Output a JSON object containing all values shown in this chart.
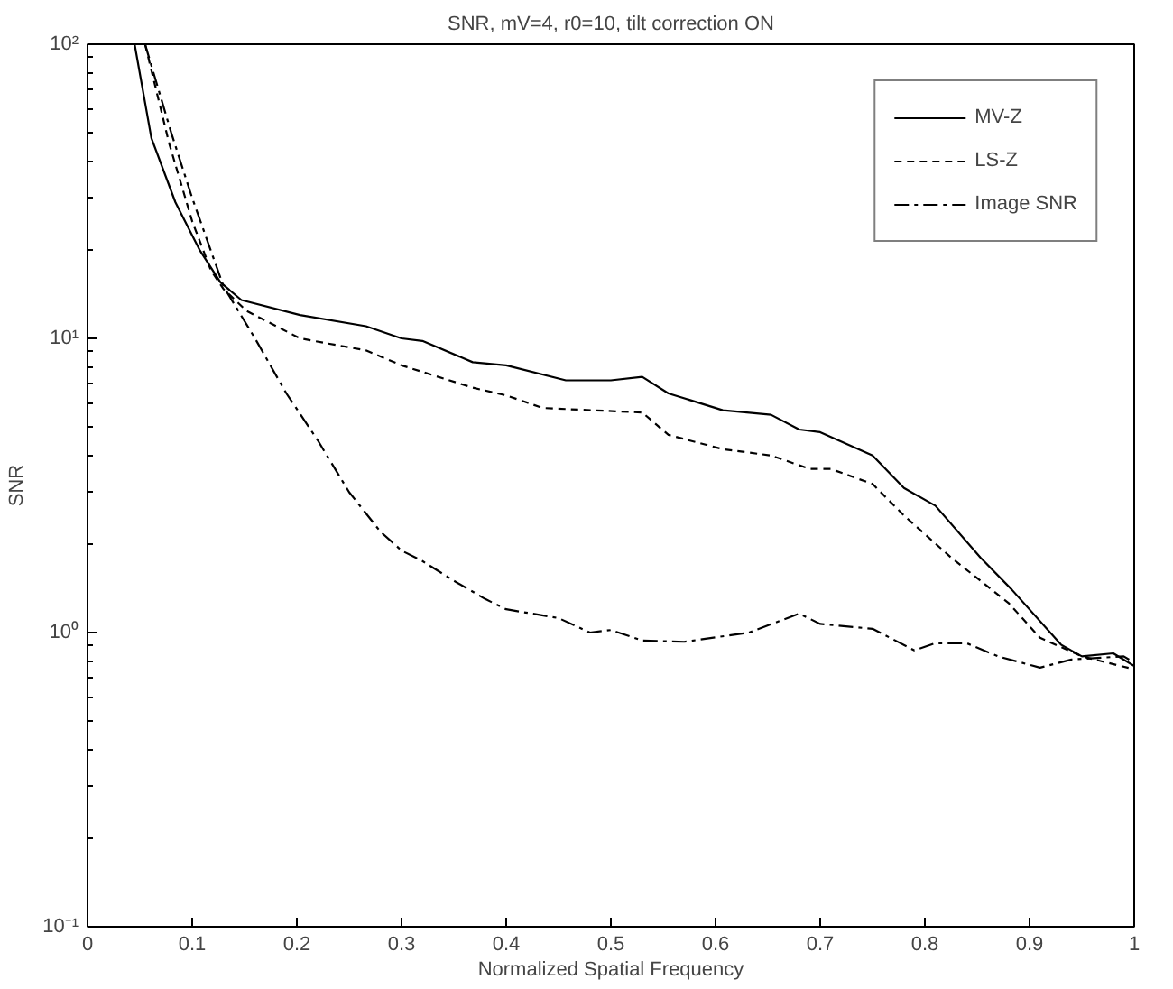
{
  "chart_data": {
    "type": "line",
    "title": "SNR, mV=4, r0=10, tilt correction ON",
    "xlabel": "Normalized Spatial Frequency",
    "ylabel": "SNR",
    "log": "y",
    "grid": false,
    "legend": "top right",
    "marker": "none",
    "xlim": [
      0,
      1
    ],
    "xticks": [
      0,
      0.1,
      0.2,
      0.3,
      0.4,
      0.5,
      0.6,
      0.7,
      0.8,
      0.9,
      1
    ],
    "ylim": [
      0.1,
      100
    ],
    "yticks": [
      {
        "value": 0.1,
        "label": "10⁻¹"
      },
      {
        "value": 1,
        "label": "10⁰"
      },
      {
        "value": 10,
        "label": "10¹"
      },
      {
        "value": 100,
        "label": "10²"
      }
    ],
    "series": [
      {
        "name": "MV-Z",
        "color": "#000000",
        "line_style": "solid",
        "x": [
          0.045,
          0.061,
          0.084,
          0.107,
          0.127,
          0.147,
          0.203,
          0.266,
          0.3,
          0.32,
          0.368,
          0.4,
          0.457,
          0.5,
          0.53,
          0.555,
          0.607,
          0.653,
          0.68,
          0.7,
          0.75,
          0.78,
          0.81,
          0.853,
          0.883,
          0.93,
          0.95,
          0.98,
          1.0
        ],
        "values": [
          100,
          48,
          29,
          20,
          15.5,
          13.5,
          12,
          11,
          10,
          9.8,
          8.3,
          8.1,
          7.2,
          7.2,
          7.4,
          6.5,
          5.7,
          5.5,
          4.9,
          4.8,
          4.0,
          3.1,
          2.7,
          1.8,
          1.4,
          0.91,
          0.83,
          0.85,
          0.77
        ]
      },
      {
        "name": "LS-Z",
        "color": "#000000",
        "line_style": "dashed",
        "x": [
          0.055,
          0.078,
          0.1,
          0.118,
          0.13,
          0.152,
          0.203,
          0.266,
          0.3,
          0.368,
          0.4,
          0.435,
          0.53,
          0.555,
          0.607,
          0.653,
          0.69,
          0.71,
          0.75,
          0.78,
          0.825,
          0.88,
          0.91,
          0.95,
          1.0
        ],
        "values": [
          100,
          46,
          25,
          17,
          14.7,
          12.4,
          10,
          9.1,
          8.1,
          6.8,
          6.4,
          5.8,
          5.6,
          4.7,
          4.2,
          4.0,
          3.6,
          3.6,
          3.2,
          2.5,
          1.8,
          1.26,
          0.96,
          0.83,
          0.75
        ]
      },
      {
        "name": "Image SNR",
        "color": "#000000",
        "line_style": "dashdot",
        "x": [
          0.055,
          0.08,
          0.1,
          0.13,
          0.16,
          0.19,
          0.22,
          0.25,
          0.28,
          0.3,
          0.32,
          0.35,
          0.38,
          0.4,
          0.45,
          0.48,
          0.5,
          0.53,
          0.57,
          0.632,
          0.68,
          0.7,
          0.75,
          0.79,
          0.81,
          0.84,
          0.87,
          0.91,
          0.94,
          0.99,
          1.0
        ],
        "values": [
          100,
          50,
          30,
          15,
          10,
          6.5,
          4.5,
          3,
          2.2,
          1.9,
          1.75,
          1.5,
          1.3,
          1.2,
          1.12,
          1.0,
          1.02,
          0.94,
          0.93,
          1.0,
          1.16,
          1.07,
          1.03,
          0.87,
          0.92,
          0.92,
          0.83,
          0.76,
          0.81,
          0.83,
          0.79
        ]
      }
    ]
  }
}
